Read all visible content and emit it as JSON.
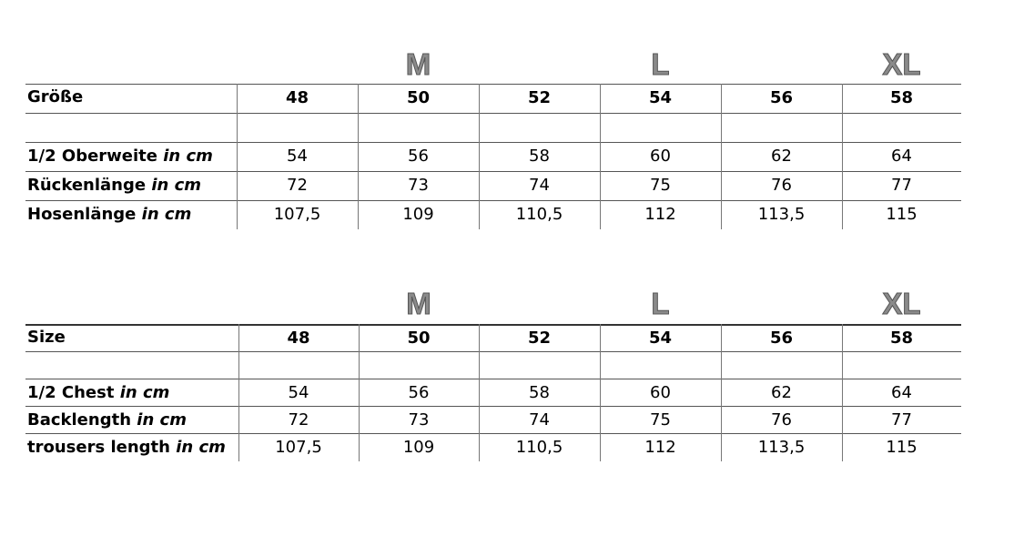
{
  "size_letters": [
    "M",
    "L",
    "XL"
  ],
  "tables": [
    {
      "header_label": "Größe",
      "sizes": [
        "48",
        "50",
        "52",
        "54",
        "56",
        "58"
      ],
      "rows": [
        {
          "label": "1/2 Oberweite",
          "unit": "in cm",
          "values": [
            "54",
            "56",
            "58",
            "60",
            "62",
            "64"
          ]
        },
        {
          "label": "Rückenlänge",
          "unit": "in cm",
          "values": [
            "72",
            "73",
            "74",
            "75",
            "76",
            "77"
          ]
        },
        {
          "label": "Hosenlänge",
          "unit": "in cm",
          "values": [
            "107,5",
            "109",
            "110,5",
            "112",
            "113,5",
            "115"
          ]
        }
      ]
    },
    {
      "header_label": "Size",
      "sizes": [
        "48",
        "50",
        "52",
        "54",
        "56",
        "58"
      ],
      "rows": [
        {
          "label": "1/2 Chest",
          "unit": "in cm",
          "values": [
            "54",
            "56",
            "58",
            "60",
            "62",
            "64"
          ]
        },
        {
          "label": "Backlength",
          "unit": "in cm",
          "values": [
            "72",
            "73",
            "74",
            "75",
            "76",
            "77"
          ]
        },
        {
          "label": "trousers length",
          "unit": "in cm",
          "values": [
            "107,5",
            "109",
            "110,5",
            "112",
            "113,5",
            "115"
          ]
        }
      ]
    }
  ]
}
